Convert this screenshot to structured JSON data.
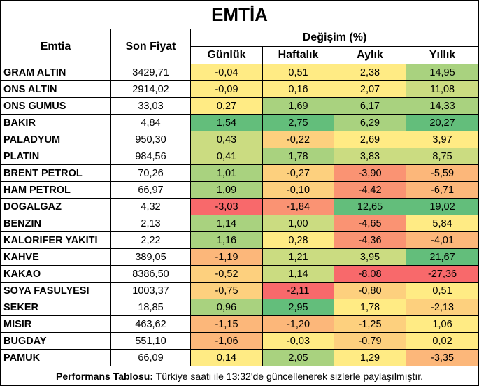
{
  "title": "EMTİA",
  "headers": {
    "emtia": "Emtia",
    "son_fiyat": "Son Fiyat",
    "degisim": "Değişim (%)",
    "gunluk": "Günlük",
    "haftalik": "Haftalık",
    "aylik": "Aylık",
    "yillik": "Yıllık"
  },
  "rows": [
    {
      "name": "GRAM ALTIN",
      "price": "3429,71",
      "d": "-0,04",
      "w": "0,51",
      "m": "2,38",
      "y": "14,95"
    },
    {
      "name": "ONS ALTIN",
      "price": "2914,02",
      "d": "-0,09",
      "w": "0,16",
      "m": "2,07",
      "y": "11,08"
    },
    {
      "name": "ONS GUMUS",
      "price": "33,03",
      "d": "0,27",
      "w": "1,69",
      "m": "6,17",
      "y": "14,33"
    },
    {
      "name": "BAKIR",
      "price": "4,84",
      "d": "1,54",
      "w": "2,75",
      "m": "6,29",
      "y": "20,27"
    },
    {
      "name": "PALADYUM",
      "price": "950,30",
      "d": "0,43",
      "w": "-0,22",
      "m": "2,69",
      "y": "3,97"
    },
    {
      "name": "PLATIN",
      "price": "984,56",
      "d": "0,41",
      "w": "1,78",
      "m": "3,83",
      "y": "8,75"
    },
    {
      "name": "BRENT PETROL",
      "price": "70,26",
      "d": "1,01",
      "w": "-0,27",
      "m": "-3,90",
      "y": "-5,59"
    },
    {
      "name": "HAM PETROL",
      "price": "66,97",
      "d": "1,09",
      "w": "-0,10",
      "m": "-4,42",
      "y": "-6,71"
    },
    {
      "name": "DOGALGAZ",
      "price": "4,32",
      "d": "-3,03",
      "w": "-1,84",
      "m": "12,65",
      "y": "19,02"
    },
    {
      "name": "BENZIN",
      "price": "2,13",
      "d": "1,14",
      "w": "1,00",
      "m": "-4,65",
      "y": "5,84"
    },
    {
      "name": "KALORIFER YAKITI",
      "price": "2,22",
      "d": "1,16",
      "w": "0,28",
      "m": "-4,36",
      "y": "-4,01"
    },
    {
      "name": "KAHVE",
      "price": "389,05",
      "d": "-1,19",
      "w": "1,21",
      "m": "3,95",
      "y": "21,67"
    },
    {
      "name": "KAKAO",
      "price": "8386,50",
      "d": "-0,52",
      "w": "1,14",
      "m": "-8,08",
      "y": "-27,36"
    },
    {
      "name": "SOYA FASULYESI",
      "price": "1003,37",
      "d": "-0,75",
      "w": "-2,11",
      "m": "-0,80",
      "y": "0,51"
    },
    {
      "name": "SEKER",
      "price": "18,85",
      "d": "0,96",
      "w": "2,95",
      "m": "1,78",
      "y": "-2,13"
    },
    {
      "name": "MISIR",
      "price": "463,62",
      "d": "-1,15",
      "w": "-1,20",
      "m": "-1,25",
      "y": "1,06"
    },
    {
      "name": "BUGDAY",
      "price": "551,10",
      "d": "-1,06",
      "w": "-0,03",
      "m": "-0,79",
      "y": "0,02"
    },
    {
      "name": "PAMUK",
      "price": "66,09",
      "d": "0,14",
      "w": "2,05",
      "m": "1,29",
      "y": "-3,35"
    }
  ],
  "footer": {
    "label": "Performans Tablosu:",
    "text": " Türkiye saati ile 13:32'de güncellenerek sizlerle paylaşılmıştır."
  },
  "colors": {
    "strong_green": "#63be7b",
    "mid_green": "#a9d27f",
    "light_green": "#cbdc81",
    "yellow": "#ffeb84",
    "light_orange": "#fdd07e",
    "orange": "#fcb77a",
    "red_orange": "#fa9373",
    "red": "#f8696b"
  }
}
